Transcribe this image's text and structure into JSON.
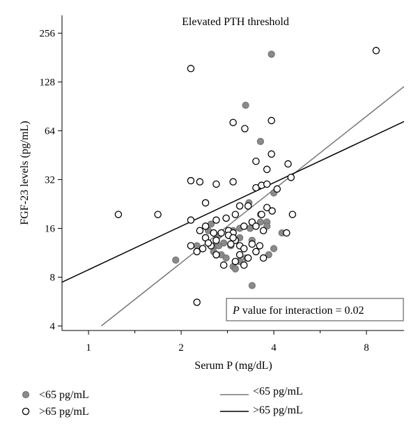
{
  "chart_data": {
    "type": "scatter",
    "title": "Elevated PTH threshold",
    "xlabel": "Serum P (mg/dL)",
    "ylabel": "FGF-23 levels (pg/mL)",
    "x_scale": "log2",
    "y_scale": "log2",
    "xlim": [
      0.82,
      10.6
    ],
    "ylim": [
      3.75,
      330
    ],
    "x_ticks": [
      1,
      2,
      4,
      8
    ],
    "x_tick_labels": [
      "1",
      "2",
      "4",
      "8"
    ],
    "y_ticks": [
      4,
      8,
      16,
      32,
      64,
      128,
      256
    ],
    "y_tick_labels": [
      "4",
      "8",
      "16",
      "32",
      "64",
      "128",
      "256"
    ],
    "annotation": {
      "label_italic": "P",
      "label_rest": " value for interaction = 0.02",
      "position": "bottom-right"
    },
    "legend_placement": "below",
    "series": [
      {
        "name": "<65 pg/mL",
        "marker": "filled-circle",
        "color": "#8a8a8a",
        "points": [
          [
            3.93,
            190
          ],
          [
            3.24,
            92
          ],
          [
            3.62,
            55
          ],
          [
            4.0,
            26.5
          ],
          [
            3.32,
            23
          ],
          [
            3.62,
            19.5
          ],
          [
            3.62,
            17.5
          ],
          [
            3.8,
            17.5
          ],
          [
            4.25,
            15
          ],
          [
            3.35,
            16
          ],
          [
            3.1,
            16
          ],
          [
            2.95,
            15.5
          ],
          [
            2.65,
            14.5
          ],
          [
            2.45,
            15.5
          ],
          [
            2.5,
            17
          ],
          [
            2.75,
            13
          ],
          [
            3.1,
            14
          ],
          [
            3.4,
            13.5
          ],
          [
            4.0,
            12
          ],
          [
            3.85,
            11
          ],
          [
            2.58,
            12.5
          ],
          [
            2.7,
            11
          ],
          [
            2.9,
            12.5
          ],
          [
            2.8,
            10.5
          ],
          [
            1.92,
            10.2
          ],
          [
            3.1,
            10
          ],
          [
            3.25,
            10.5
          ],
          [
            2.95,
            9.3
          ],
          [
            3.0,
            9.0
          ],
          [
            3.4,
            7.1
          ],
          [
            3.1,
            5.2
          ],
          [
            2.55,
            11.5
          ],
          [
            2.25,
            12.5
          ],
          [
            2.65,
            12.5
          ],
          [
            3.8,
            16.5
          ]
        ]
      },
      {
        "name": ">65 pg/mL",
        "marker": "open-circle",
        "color": "#000000",
        "points": [
          [
            8.6,
            200
          ],
          [
            2.15,
            155
          ],
          [
            2.95,
            72
          ],
          [
            3.22,
            66
          ],
          [
            3.93,
            74
          ],
          [
            3.93,
            46
          ],
          [
            3.5,
            41.5
          ],
          [
            4.45,
            40
          ],
          [
            3.8,
            37
          ],
          [
            4.55,
            33
          ],
          [
            2.15,
            31.5
          ],
          [
            2.3,
            31
          ],
          [
            2.6,
            30
          ],
          [
            2.95,
            31
          ],
          [
            3.5,
            28.5
          ],
          [
            3.65,
            29.5
          ],
          [
            3.8,
            30
          ],
          [
            4.1,
            28
          ],
          [
            2.4,
            23
          ],
          [
            3.1,
            22
          ],
          [
            3.3,
            22
          ],
          [
            3.8,
            21.5
          ],
          [
            3.95,
            20.5
          ],
          [
            3.65,
            19.5
          ],
          [
            4.6,
            19.5
          ],
          [
            1.25,
            19.5
          ],
          [
            1.68,
            19.5
          ],
          [
            2.15,
            18
          ],
          [
            2.8,
            18.5
          ],
          [
            3.0,
            19.5
          ],
          [
            2.6,
            18
          ],
          [
            3.4,
            17.5
          ],
          [
            2.4,
            16.5
          ],
          [
            2.3,
            15.5
          ],
          [
            2.55,
            15
          ],
          [
            2.7,
            15
          ],
          [
            2.85,
            15.5
          ],
          [
            2.95,
            15
          ],
          [
            3.2,
            16.5
          ],
          [
            3.5,
            16.5
          ],
          [
            3.7,
            15.5
          ],
          [
            4.4,
            15
          ],
          [
            2.4,
            14
          ],
          [
            2.6,
            13.5
          ],
          [
            2.85,
            14.5
          ],
          [
            3.0,
            13.5
          ],
          [
            3.1,
            12.5
          ],
          [
            3.4,
            12.8
          ],
          [
            3.6,
            12.5
          ],
          [
            2.15,
            12.5
          ],
          [
            2.35,
            12
          ],
          [
            2.5,
            12.5
          ],
          [
            2.9,
            12.8
          ],
          [
            3.2,
            12
          ],
          [
            3.5,
            11.5
          ],
          [
            2.25,
            11.5
          ],
          [
            2.6,
            11
          ],
          [
            3.1,
            11
          ],
          [
            3.3,
            10.5
          ],
          [
            3.7,
            10.5
          ],
          [
            3.0,
            10
          ],
          [
            2.75,
            9.5
          ],
          [
            3.2,
            9.5
          ],
          [
            2.25,
            5.6
          ],
          [
            2.45,
            13
          ],
          [
            2.95,
            14
          ]
        ]
      }
    ],
    "fit_lines": [
      {
        "name": "<65 pg/mL",
        "color": "#777777",
        "points": [
          [
            1.1,
            4.0
          ],
          [
            10.6,
            120
          ]
        ]
      },
      {
        "name": ">65 pg/mL",
        "color": "#000000",
        "points": [
          [
            0.82,
            7.45
          ],
          [
            10.6,
            73
          ]
        ]
      }
    ]
  }
}
